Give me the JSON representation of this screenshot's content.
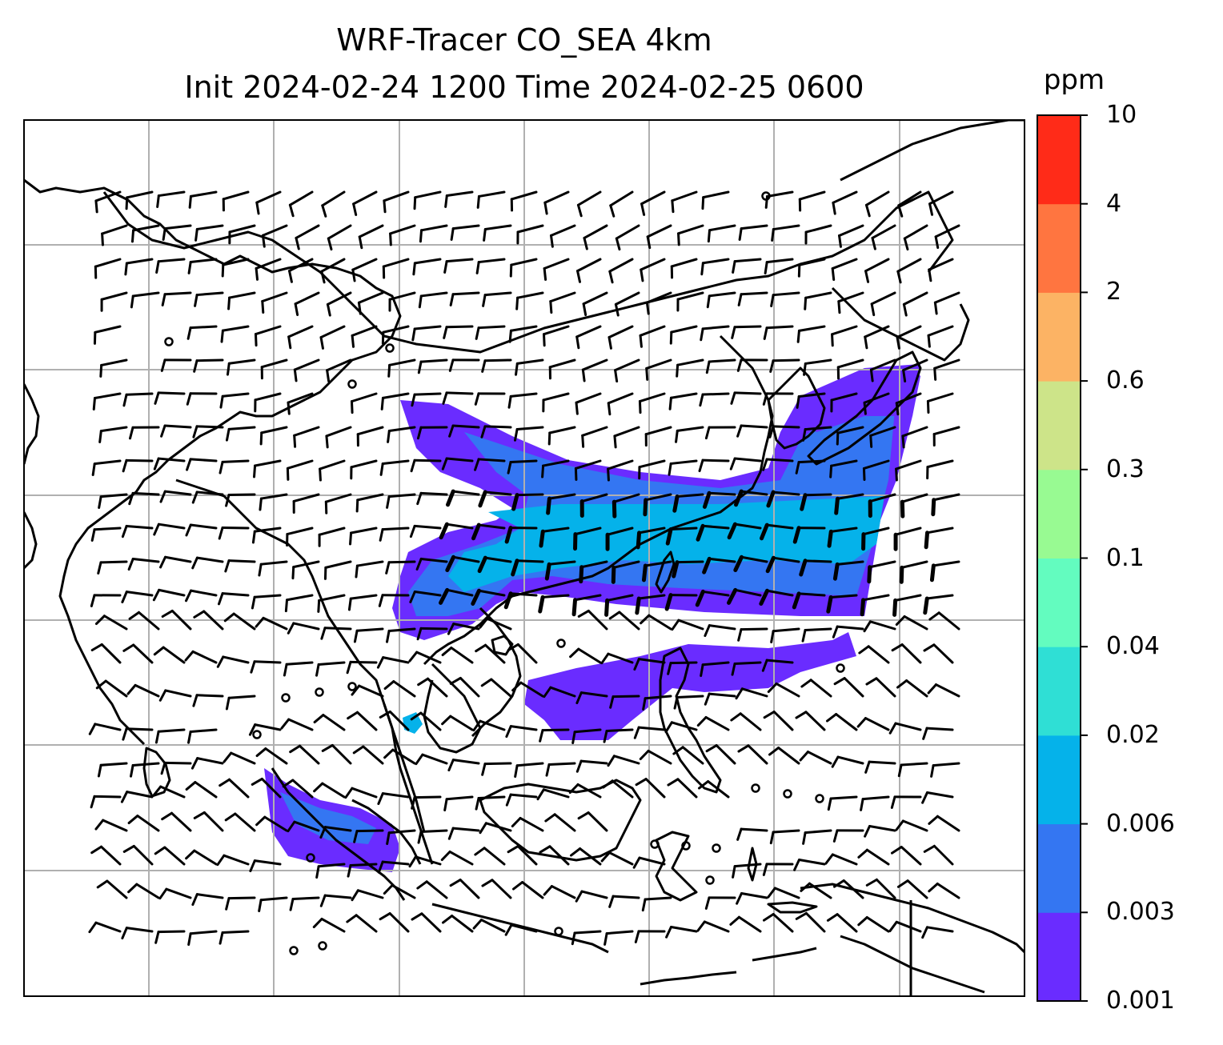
{
  "title": {
    "line1": "WRF-Tracer CO_SEA 4km",
    "line2": "Init 2024-02-24 1200 Time 2024-02-25 0600"
  },
  "colorbar": {
    "unit": "ppm",
    "levels": [
      "0.001",
      "0.003",
      "0.006",
      "0.02",
      "0.04",
      "0.1",
      "0.3",
      "0.6",
      "2",
      "4",
      "10"
    ],
    "colors": [
      "#6a2cff",
      "#3476f2",
      "#05b2ea",
      "#2fdfd5",
      "#63fcbf",
      "#98fa92",
      "#cde489",
      "#fcb364",
      "#ff7540",
      "#ff2b18"
    ]
  },
  "map": {
    "gridlines": true,
    "coastline_color": "#000000",
    "grid_color": "#b0b0b0",
    "tracer_colors": {
      "low": "#6a2cff",
      "mid": "#3476f2",
      "high": "#05b2ea",
      "peak": "#2fdfd5"
    },
    "barb_color": "#000000",
    "barb_icon": "wind-barb-icon",
    "calm_icon": "calm-circle-icon"
  }
}
